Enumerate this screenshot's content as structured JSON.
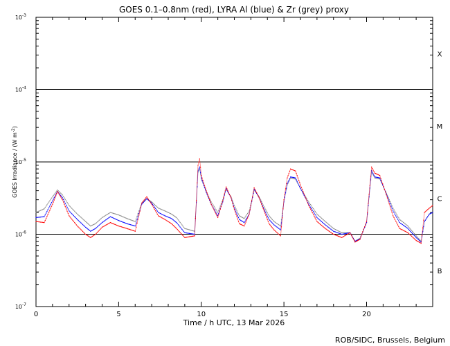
{
  "chart_data": {
    "type": "scatter",
    "title": "GOES 0.1–0.8nm (red), LYRA Al (blue) & Zr (grey) proxy",
    "xlabel": "Time / h UTC, 13 Mar 2026",
    "ylabel": "GOES Irradiance / (W m",
    "ylabel_sup": "-2",
    "ylabel_close": ")",
    "credit": "ROB/SIDC, Brussels, Belgium",
    "scale": "log",
    "xlim": [
      0,
      24
    ],
    "ylim_exp": [
      -7,
      -3
    ],
    "x_ticks": [
      "0",
      "5",
      "10",
      "15",
      "20"
    ],
    "y_ticks": [
      {
        "base": "10",
        "exp": "-7"
      },
      {
        "base": "10",
        "exp": "-6"
      },
      {
        "base": "10",
        "exp": "-5"
      },
      {
        "base": "10",
        "exp": "-4"
      },
      {
        "base": "10",
        "exp": "-3"
      }
    ],
    "flare_classes": [
      "B",
      "C",
      "M",
      "X"
    ],
    "class_lines_exp": [
      -6,
      -5,
      -4
    ],
    "colors": {
      "goes": "#ff0000",
      "lyra_al": "#0000ff",
      "lyra_zr": "#888888"
    },
    "series": [
      {
        "name": "red",
        "x": [
          0.0,
          0.5,
          1.0,
          1.3,
          1.6,
          2.0,
          2.5,
          3.0,
          3.3,
          3.6,
          4.0,
          4.5,
          5.0,
          5.5,
          6.0,
          6.4,
          6.7,
          7.0,
          7.4,
          7.8,
          8.2,
          8.5,
          9.0,
          9.6,
          9.8,
          9.9,
          10.0,
          10.3,
          10.6,
          11.0,
          11.3,
          11.5,
          11.8,
          12.0,
          12.3,
          12.6,
          12.9,
          13.2,
          13.5,
          13.8,
          14.1,
          14.4,
          14.8,
          15.0,
          15.2,
          15.4,
          15.7,
          16.0,
          16.5,
          17.0,
          17.5,
          18.0,
          18.5,
          19.0,
          19.3,
          19.6,
          20.0,
          20.3,
          20.5,
          20.8,
          21.2,
          21.6,
          22.0,
          22.5,
          23.0,
          23.3,
          23.5,
          23.8,
          24.0
        ],
        "y": [
          1.5e-06,
          1.45e-06,
          2.6e-06,
          3.9e-06,
          3e-06,
          1.8e-06,
          1.3e-06,
          1e-06,
          9e-07,
          1e-06,
          1.25e-06,
          1.45e-06,
          1.3e-06,
          1.2e-06,
          1.1e-06,
          2.7e-06,
          3.3e-06,
          2.6e-06,
          1.8e-06,
          1.6e-06,
          1.4e-06,
          1.2e-06,
          9e-07,
          9.5e-07,
          9e-06,
          1.1e-05,
          6.5e-06,
          4e-06,
          2.6e-06,
          1.7e-06,
          2.9e-06,
          4.5e-06,
          3.2e-06,
          2.2e-06,
          1.4e-06,
          1.3e-06,
          1.9e-06,
          4.4e-06,
          3.2e-06,
          2.1e-06,
          1.4e-06,
          1.15e-06,
          9.5e-07,
          3e-06,
          6e-06,
          8e-06,
          7.5e-06,
          4.8e-06,
          2.5e-06,
          1.5e-06,
          1.2e-06,
          1e-06,
          9e-07,
          1.05e-06,
          7.8e-07,
          8.5e-07,
          1.5e-06,
          8.5e-06,
          7e-06,
          6.5e-06,
          3.5e-06,
          1.8e-06,
          1.2e-06,
          1.05e-06,
          8.2e-07,
          7.5e-07,
          2e-06,
          2.3e-06,
          2.5e-06
        ]
      },
      {
        "name": "blue",
        "x": [
          0.0,
          0.5,
          1.0,
          1.3,
          1.6,
          2.0,
          2.5,
          3.0,
          3.3,
          3.6,
          4.0,
          4.5,
          5.0,
          5.5,
          6.0,
          6.4,
          6.7,
          7.0,
          7.4,
          7.8,
          8.2,
          8.5,
          9.0,
          9.6,
          9.8,
          9.9,
          10.0,
          10.3,
          10.6,
          11.0,
          11.3,
          11.5,
          11.8,
          12.0,
          12.3,
          12.6,
          12.9,
          13.2,
          13.5,
          13.8,
          14.1,
          14.4,
          14.8,
          15.0,
          15.2,
          15.4,
          15.7,
          16.0,
          16.5,
          17.0,
          17.5,
          18.0,
          18.5,
          19.0,
          19.3,
          19.6,
          20.0,
          20.3,
          20.5,
          20.8,
          21.2,
          21.6,
          22.0,
          22.5,
          23.0,
          23.3,
          23.5,
          23.8,
          24.0
        ],
        "y": [
          1.7e-06,
          1.75e-06,
          2.9e-06,
          3.9e-06,
          3.2e-06,
          2.1e-06,
          1.6e-06,
          1.25e-06,
          1.1e-06,
          1.2e-06,
          1.45e-06,
          1.75e-06,
          1.55e-06,
          1.4e-06,
          1.3e-06,
          2.6e-06,
          3.1e-06,
          2.7e-06,
          2e-06,
          1.8e-06,
          1.65e-06,
          1.45e-06,
          1.05e-06,
          1e-06,
          7.5e-06,
          8.5e-06,
          6e-06,
          3.8e-06,
          2.6e-06,
          1.8e-06,
          2.8e-06,
          4.3e-06,
          3.2e-06,
          2.3e-06,
          1.6e-06,
          1.45e-06,
          1.9e-06,
          4.2e-06,
          3.2e-06,
          2.2e-06,
          1.6e-06,
          1.35e-06,
          1.15e-06,
          2.8e-06,
          5e-06,
          6.2e-06,
          6e-06,
          4.3e-06,
          2.6e-06,
          1.7e-06,
          1.35e-06,
          1.1e-06,
          1e-06,
          1.05e-06,
          8e-07,
          8.6e-07,
          1.45e-06,
          7.6e-06,
          6.2e-06,
          6e-06,
          3.6e-06,
          2.1e-06,
          1.45e-06,
          1.2e-06,
          9e-07,
          7.8e-07,
          1.5e-06,
          1.9e-06,
          2e-06
        ]
      },
      {
        "name": "grey",
        "x": [
          0.0,
          0.5,
          1.0,
          1.3,
          1.6,
          2.0,
          2.5,
          3.0,
          3.3,
          3.6,
          4.0,
          4.5,
          5.0,
          5.5,
          6.0,
          6.4,
          6.7,
          7.0,
          7.4,
          7.8,
          8.2,
          8.5,
          9.0,
          9.6,
          9.8,
          9.9,
          10.0,
          10.3,
          10.6,
          11.0,
          11.3,
          11.5,
          11.8,
          12.0,
          12.3,
          12.6,
          12.9,
          13.2,
          13.5,
          13.8,
          14.1,
          14.4,
          14.8,
          15.0,
          15.2,
          15.4,
          15.7,
          16.0,
          16.5,
          17.0,
          17.5,
          18.0,
          18.5,
          19.0,
          19.3,
          19.6,
          20.0,
          20.3,
          20.5,
          20.8,
          21.2,
          21.6,
          22.0,
          22.5,
          23.0,
          23.3,
          23.5,
          23.8,
          24.0
        ],
        "y": [
          2e-06,
          2.25e-06,
          3.3e-06,
          4.1e-06,
          3.5e-06,
          2.5e-06,
          1.9e-06,
          1.5e-06,
          1.3e-06,
          1.4e-06,
          1.7e-06,
          2e-06,
          1.85e-06,
          1.65e-06,
          1.5e-06,
          2.7e-06,
          3.1e-06,
          2.8e-06,
          2.3e-06,
          2.1e-06,
          1.9e-06,
          1.7e-06,
          1.2e-06,
          1.1e-06,
          7.2e-06,
          8e-06,
          5.8e-06,
          3.9e-06,
          2.8e-06,
          2e-06,
          3e-06,
          4.2e-06,
          3.3e-06,
          2.5e-06,
          1.8e-06,
          1.65e-06,
          2.1e-06,
          4.1e-06,
          3.3e-06,
          2.4e-06,
          1.8e-06,
          1.5e-06,
          1.3e-06,
          2.9e-06,
          4.8e-06,
          6e-06,
          5.8e-06,
          4.3e-06,
          2.8e-06,
          1.9e-06,
          1.5e-06,
          1.2e-06,
          1.05e-06,
          1.05e-06,
          8e-07,
          8.8e-07,
          1.45e-06,
          7.3e-06,
          6e-06,
          5.8e-06,
          3.7e-06,
          2.3e-06,
          1.6e-06,
          1.3e-06,
          9.5e-07,
          8e-07,
          1.5e-06,
          1.9e-06,
          2e-06
        ]
      }
    ]
  }
}
